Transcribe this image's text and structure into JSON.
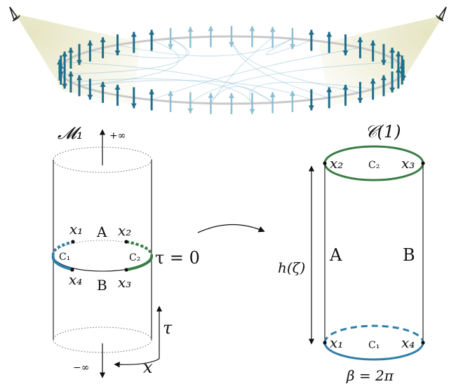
{
  "colors": {
    "teal": "#1f6f8b",
    "teal_light": "#8fbfd3",
    "green": "#3b7d46",
    "blue_ring": "#2f7fa8",
    "beam": "#e4e3bf",
    "ink": "#111111"
  },
  "icons": {
    "left_observer": "eye-cone-icon",
    "right_observer": "eye-cone-icon"
  },
  "left": {
    "manifold": "𝓜₁",
    "plus_inf": "+∞",
    "minus_inf": "−∞",
    "region_a": "A",
    "region_b": "B",
    "curve": "C₁",
    "curve2": "C₂",
    "x1": "x₁",
    "x2": "x₂",
    "x3": "x₃",
    "x4": "x₄",
    "tau_eq": "τ = 0",
    "tau": "τ",
    "x_axis": "x"
  },
  "right": {
    "title": "𝒞(1)",
    "x1": "x₁",
    "x2": "x₂",
    "x3": "x₃",
    "x4": "x₄",
    "c1": "C₁",
    "c2": "C₂",
    "region_a": "A",
    "region_b": "B",
    "height": "h(ζ)",
    "beta": "β = 2π"
  }
}
